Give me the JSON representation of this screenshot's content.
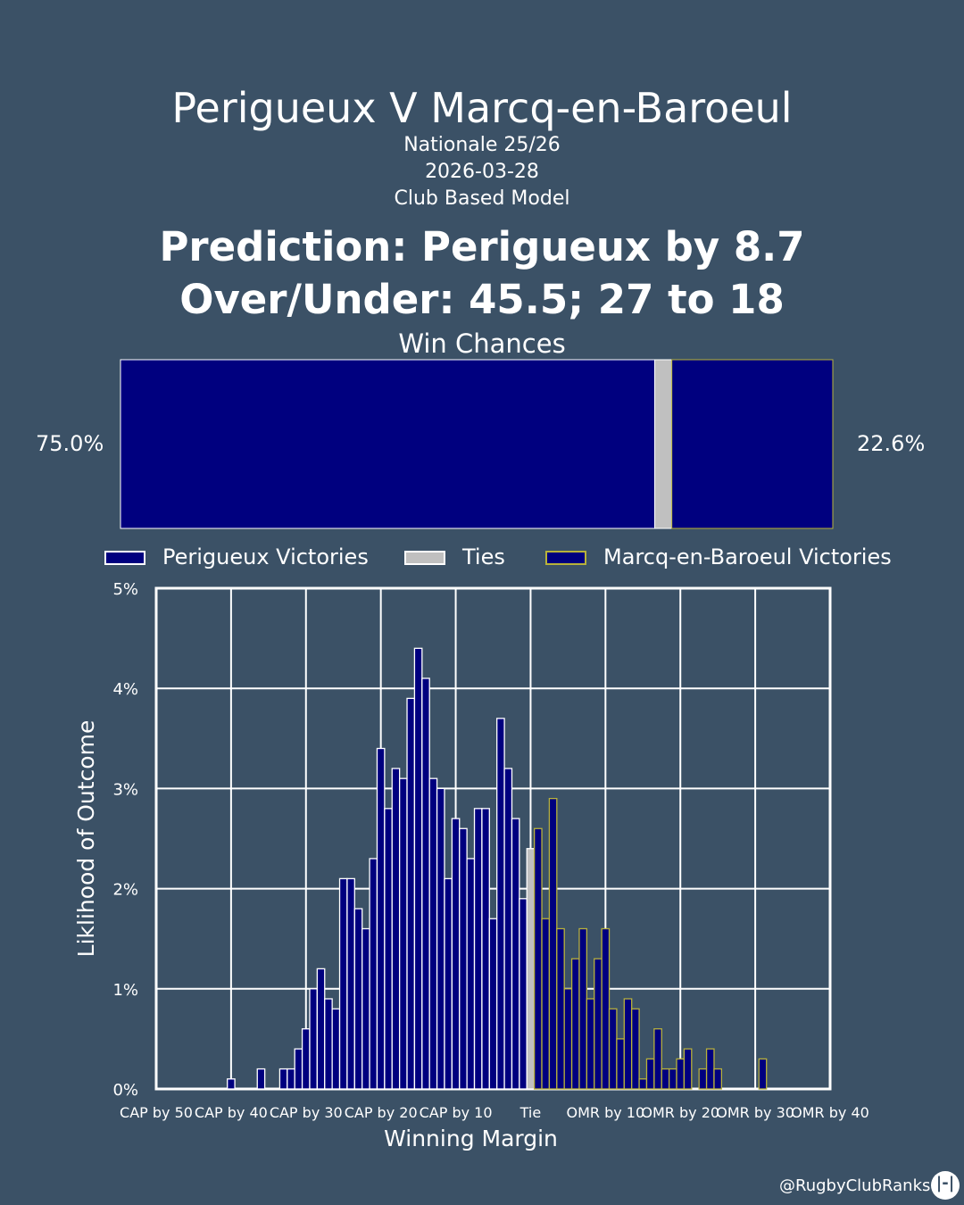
{
  "header": {
    "title": "Perigueux V Marcq-en-Baroeul",
    "league": "Nationale 25/26",
    "date": "2026-03-28",
    "model": "Club Based Model",
    "prediction": "Prediction: Perigueux by 8.7",
    "over_under": "Over/Under: 45.5; 27 to 18",
    "win_chances_label": "Win Chances"
  },
  "win_chances": {
    "home_pct_label": "75.0%",
    "away_pct_label": "22.6%",
    "home": 75.0,
    "tie": 2.4,
    "away": 22.6
  },
  "legend": {
    "home": "Perigueux Victories",
    "tie": "Ties",
    "away": "Marcq-en-Baroeul Victories"
  },
  "colors": {
    "background": "#3b5166",
    "home_fill": "#00007f",
    "home_edge": "#ffffff",
    "tie_fill": "#c0c0c0",
    "away_fill": "#00007f",
    "away_edge": "#b8b23a"
  },
  "chart_data": {
    "type": "bar",
    "xlabel": "Winning Margin",
    "ylabel": "Liklihood of Outcome",
    "xlim": [
      -50,
      40
    ],
    "ylim": [
      0,
      5
    ],
    "x_ticks": [
      -50,
      -40,
      -30,
      -20,
      -10,
      0,
      10,
      20,
      30,
      40
    ],
    "x_tick_labels": [
      "CAP by 50",
      "CAP by 40",
      "CAP by 30",
      "CAP by 20",
      "CAP by 10",
      "Tie",
      "OMR by 10",
      "OMR by 20",
      "OMR by 30",
      "OMR by 40"
    ],
    "y_ticks": [
      0,
      1,
      2,
      3,
      4,
      5
    ],
    "y_tick_labels": [
      "0%",
      "1%",
      "2%",
      "3%",
      "4%",
      "5%"
    ],
    "grid": true,
    "series": [
      {
        "name": "Perigueux Victories",
        "x": [
          -40,
          -36,
          -33,
          -32,
          -31,
          -30,
          -29,
          -28,
          -27,
          -26,
          -25,
          -24,
          -23,
          -22,
          -21,
          -20,
          -19,
          -18,
          -17,
          -16,
          -15,
          -14,
          -13,
          -12,
          -11,
          -10,
          -9,
          -8,
          -7,
          -6,
          -5,
          -4,
          -3,
          -2,
          -1
        ],
        "values": [
          0.1,
          0.2,
          0.2,
          0.2,
          0.4,
          0.6,
          1.0,
          1.2,
          0.9,
          0.8,
          2.1,
          2.1,
          1.8,
          1.6,
          2.3,
          3.4,
          2.8,
          3.2,
          3.1,
          3.9,
          4.4,
          4.1,
          3.1,
          3.0,
          2.1,
          2.7,
          2.6,
          2.3,
          2.8,
          2.8,
          1.7,
          3.7,
          3.2,
          2.7,
          1.9
        ]
      },
      {
        "name": "Ties",
        "x": [
          0
        ],
        "values": [
          2.4
        ]
      },
      {
        "name": "Marcq-en-Baroeul Victories",
        "x": [
          1,
          2,
          3,
          4,
          5,
          6,
          7,
          8,
          9,
          10,
          11,
          12,
          13,
          14,
          15,
          16,
          17,
          18,
          19,
          20,
          21,
          22,
          23,
          24,
          25,
          26,
          27,
          28,
          29,
          31
        ],
        "values": [
          2.6,
          1.7,
          2.9,
          1.6,
          1.0,
          1.3,
          1.6,
          0.9,
          1.3,
          1.6,
          0.8,
          0.5,
          0.9,
          0.8,
          0.1,
          0.3,
          0.6,
          0.2,
          0.2,
          0.3,
          0.4,
          0.0,
          0.2,
          0.4,
          0.2,
          0.0,
          0.0,
          0.0,
          0.0,
          0.3
        ]
      }
    ]
  },
  "footer": {
    "handle": "@RugbyClubRanks",
    "logo_text": "|-|"
  }
}
